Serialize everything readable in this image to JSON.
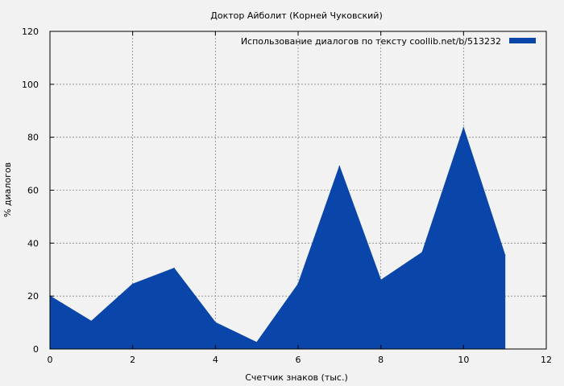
{
  "chart_data": {
    "type": "area",
    "title": "Доктор Айболит (Корней Чуковский)",
    "xlabel": "Счетчик знаков (тыс.)",
    "ylabel": "% диалогов",
    "xlim": [
      0,
      12
    ],
    "ylim": [
      0,
      120
    ],
    "xticks": [
      "0",
      "2",
      "4",
      "6",
      "8",
      "10",
      "12"
    ],
    "yticks": [
      "0",
      "20",
      "40",
      "60",
      "80",
      "100",
      "120"
    ],
    "grid": true,
    "legend_position": "top-right",
    "series": [
      {
        "name": "Использование диалогов по тексту  coollib.net/b/513232",
        "color": "#0a46aa",
        "x": [
          0,
          1,
          2,
          3,
          4,
          5,
          6,
          7,
          8,
          9,
          10,
          11
        ],
        "y": [
          20,
          10.5,
          24.5,
          30.5,
          10,
          2.5,
          24.5,
          69,
          26,
          36.5,
          83.5,
          35.5
        ]
      }
    ]
  }
}
